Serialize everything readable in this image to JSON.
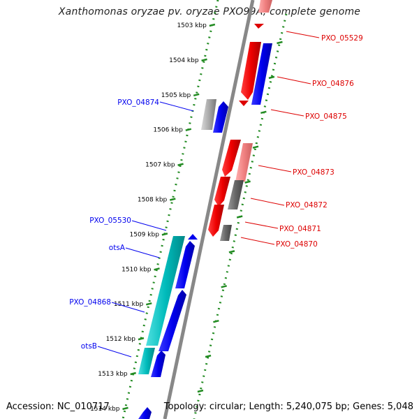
{
  "title": "Xanthomonas oryzae pv. oryzae PXO99A, complete genome",
  "footer": {
    "accession": "Accession: NC_010717",
    "topology": "Topology: circular; Length: 5,240,075 bp; Genes: 5,048"
  },
  "ticks": [
    {
      "label": "1503 kbp"
    },
    {
      "label": "1504 kbp"
    },
    {
      "label": "1505 kbp"
    },
    {
      "label": "1506 kbp"
    },
    {
      "label": "1507 kbp"
    },
    {
      "label": "1508 kbp"
    },
    {
      "label": "1509 kbp"
    },
    {
      "label": "1510 kbp"
    },
    {
      "label": "1511 kbp"
    },
    {
      "label": "1512 kbp"
    },
    {
      "label": "1513 kbp"
    },
    {
      "label": "1514 kbp"
    }
  ],
  "labels_left": [
    {
      "text": "PXO_04874"
    },
    {
      "text": "PXO_05530"
    },
    {
      "text": "otsA"
    },
    {
      "text": "PXO_04868"
    },
    {
      "text": "otsB"
    }
  ],
  "labels_right": [
    {
      "text": "PXO_05529"
    },
    {
      "text": "PXO_04876"
    },
    {
      "text": "PXO_04875"
    },
    {
      "text": "PXO_04873"
    },
    {
      "text": "PXO_04872"
    },
    {
      "text": "PXO_04871"
    },
    {
      "text": "PXO_04870"
    }
  ],
  "colors": {
    "forward": "#0000ee",
    "reverse": "#dd0000",
    "rna": "#00bbbb",
    "pseudo_grey": "#888888",
    "pink": "#f08080",
    "tick": "#228b22",
    "backbone": "#888888"
  }
}
